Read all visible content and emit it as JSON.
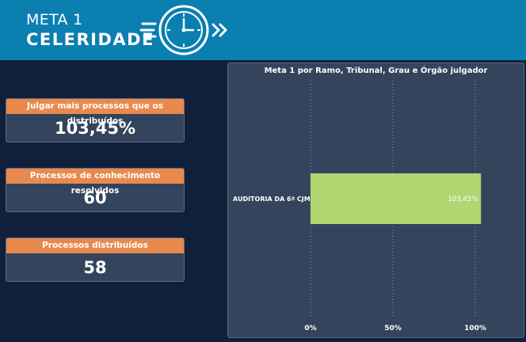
{
  "header": {
    "meta_label": "META 1",
    "meta_title": "CELERIDADE",
    "icon": "clock-icon",
    "brand_color": "#0a7fb0"
  },
  "kpis": [
    {
      "label": "Julgar mais processos que os distribuídos",
      "value": "103,45%"
    },
    {
      "label": "Processos de conhecimento resolvidos",
      "value": "60"
    },
    {
      "label": "Processos distribuídos",
      "value": "58"
    }
  ],
  "chart_data": {
    "type": "bar",
    "orientation": "horizontal",
    "title": "Meta 1 por Ramo, Tribunal, Grau e Órgão julgador",
    "categories": [
      "AUDITORIA DA 6ª CJM"
    ],
    "values": [
      103.45
    ],
    "data_labels": [
      "103,45%"
    ],
    "x_ticks": [
      "0%",
      "50%",
      "100%"
    ],
    "x_tick_values": [
      0,
      50,
      100
    ],
    "xlim": [
      0,
      100
    ],
    "grid": true,
    "bar_color": "#b0d672"
  }
}
